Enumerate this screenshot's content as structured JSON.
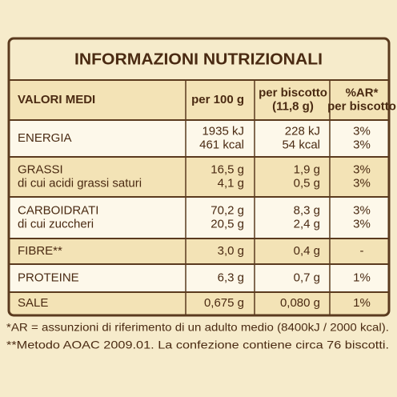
{
  "title": "INFORMAZIONI NUTRIZIONALI",
  "table": {
    "header": [
      [
        "VALORI MEDI"
      ],
      [
        "per 100 g"
      ],
      [
        "per biscotto",
        "(11,8 g)"
      ],
      [
        "%AR*",
        "per biscotto"
      ]
    ],
    "rows": [
      [
        [
          "ENERGIA"
        ],
        [
          "1935 kJ",
          "461 kcal"
        ],
        [
          "228 kJ",
          "54 kcal"
        ],
        [
          "3%",
          "3%"
        ]
      ],
      [
        [
          "GRASSI",
          "di cui acidi grassi saturi"
        ],
        [
          "16,5 g",
          "4,1 g"
        ],
        [
          "1,9 g",
          "0,5 g"
        ],
        [
          "3%",
          "3%"
        ]
      ],
      [
        [
          "CARBOIDRATI",
          "di cui zuccheri"
        ],
        [
          "70,2 g",
          "20,5 g"
        ],
        [
          "8,3 g",
          "2,4 g"
        ],
        [
          "3%",
          "3%"
        ]
      ],
      [
        [
          "FIBRE**"
        ],
        [
          "3,0 g"
        ],
        [
          "0,4 g"
        ],
        [
          "-"
        ]
      ],
      [
        [
          "PROTEINE"
        ],
        [
          "6,3 g"
        ],
        [
          "0,7 g"
        ],
        [
          "1%"
        ]
      ],
      [
        [
          "SALE"
        ],
        [
          "0,675 g"
        ],
        [
          "0,080 g"
        ],
        [
          "1%"
        ]
      ]
    ]
  },
  "footnotes": [
    "*AR = assunzioni di riferimento di un adulto medio (8400kJ / 2000 kcal).",
    "**Metodo AOAC 2009.01. La confezione contiene circa 76 biscotti."
  ]
}
